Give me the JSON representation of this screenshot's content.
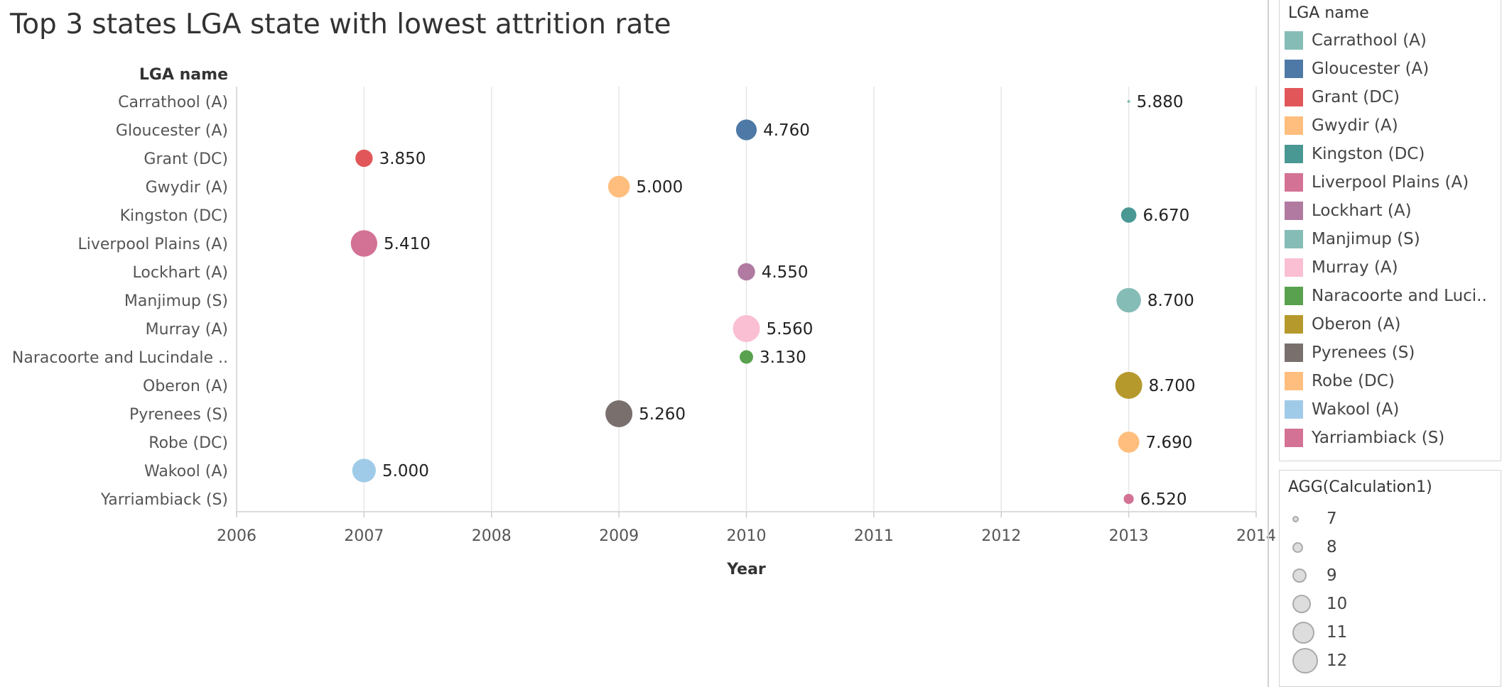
{
  "title": "Top 3 states LGA state with lowest attrition rate",
  "chart_data": {
    "type": "scatter",
    "xlabel": "Year",
    "ylabel": "LGA name",
    "xlim": [
      2006,
      2014
    ],
    "x_ticks": [
      "2006",
      "2007",
      "2008",
      "2009",
      "2010",
      "2011",
      "2012",
      "2013",
      "2014"
    ],
    "grid": "vertical",
    "points": [
      {
        "lga": "Carrathool (A)",
        "year": 2013,
        "label": "5.880",
        "size": 7,
        "color": "#86bcb6"
      },
      {
        "lga": "Gloucester (A)",
        "year": 2010,
        "label": "4.760",
        "size": 10.7,
        "color": "#4e79a7"
      },
      {
        "lga": "Grant (DC)",
        "year": 2007,
        "label": "3.850",
        "size": 10,
        "color": "#e15759"
      },
      {
        "lga": "Gwydir (A)",
        "year": 2009,
        "label": "5.000",
        "size": 10.9,
        "color": "#ffbe7d"
      },
      {
        "lga": "Kingston (DC)",
        "year": 2013,
        "label": "6.670",
        "size": 9.6,
        "color": "#499894"
      },
      {
        "lga": "Liverpool Plains (A)",
        "year": 2007,
        "label": "5.410",
        "size": 11.9,
        "color": "#d37295"
      },
      {
        "lga": "Lockhart (A)",
        "year": 2010,
        "label": "4.550",
        "size": 10,
        "color": "#b07aa1"
      },
      {
        "lga": "Manjimup (S)",
        "year": 2013,
        "label": "8.700",
        "size": 11.5,
        "color": "#86bcb6"
      },
      {
        "lga": "Murray (A)",
        "year": 2010,
        "label": "5.560",
        "size": 12,
        "color": "#fabfd2"
      },
      {
        "lga": "Naracoorte and Lucindale ..",
        "year": 2010,
        "label": "3.130",
        "size": 9.2,
        "color": "#59a14f"
      },
      {
        "lga": "Oberon (A)",
        "year": 2013,
        "label": "8.700",
        "size": 12,
        "color": "#b6992d"
      },
      {
        "lga": "Pyrenees (S)",
        "year": 2009,
        "label": "5.260",
        "size": 12,
        "color": "#79706e"
      },
      {
        "lga": "Robe (DC)",
        "year": 2013,
        "label": "7.690",
        "size": 10.8,
        "color": "#ffbe7d"
      },
      {
        "lga": "Wakool (A)",
        "year": 2007,
        "label": "5.000",
        "size": 11.3,
        "color": "#a0cbe8"
      },
      {
        "lga": "Yarriambiack (S)",
        "year": 2013,
        "label": "6.520",
        "size": 8.5,
        "color": "#d37295"
      }
    ]
  },
  "color_legend": {
    "title": "LGA name",
    "items": [
      {
        "label": "Carrathool (A)",
        "color": "#86bcb6"
      },
      {
        "label": "Gloucester (A)",
        "color": "#4e79a7"
      },
      {
        "label": "Grant (DC)",
        "color": "#e15759"
      },
      {
        "label": "Gwydir (A)",
        "color": "#ffbe7d"
      },
      {
        "label": "Kingston (DC)",
        "color": "#499894"
      },
      {
        "label": "Liverpool Plains (A)",
        "color": "#d37295"
      },
      {
        "label": "Lockhart (A)",
        "color": "#b07aa1"
      },
      {
        "label": "Manjimup (S)",
        "color": "#86bcb6"
      },
      {
        "label": "Murray (A)",
        "color": "#fabfd2"
      },
      {
        "label": "Naracoorte and Luci..",
        "color": "#59a14f"
      },
      {
        "label": "Oberon (A)",
        "color": "#b6992d"
      },
      {
        "label": "Pyrenees (S)",
        "color": "#79706e"
      },
      {
        "label": "Robe (DC)",
        "color": "#ffbe7d"
      },
      {
        "label": "Wakool (A)",
        "color": "#a0cbe8"
      },
      {
        "label": "Yarriambiack (S)",
        "color": "#d37295"
      }
    ]
  },
  "size_legend": {
    "title": "AGG(Calculation1)",
    "items": [
      {
        "label": "7",
        "value": 7
      },
      {
        "label": "8",
        "value": 8
      },
      {
        "label": "9",
        "value": 9
      },
      {
        "label": "10",
        "value": 10
      },
      {
        "label": "11",
        "value": 11
      },
      {
        "label": "12",
        "value": 12
      }
    ]
  }
}
